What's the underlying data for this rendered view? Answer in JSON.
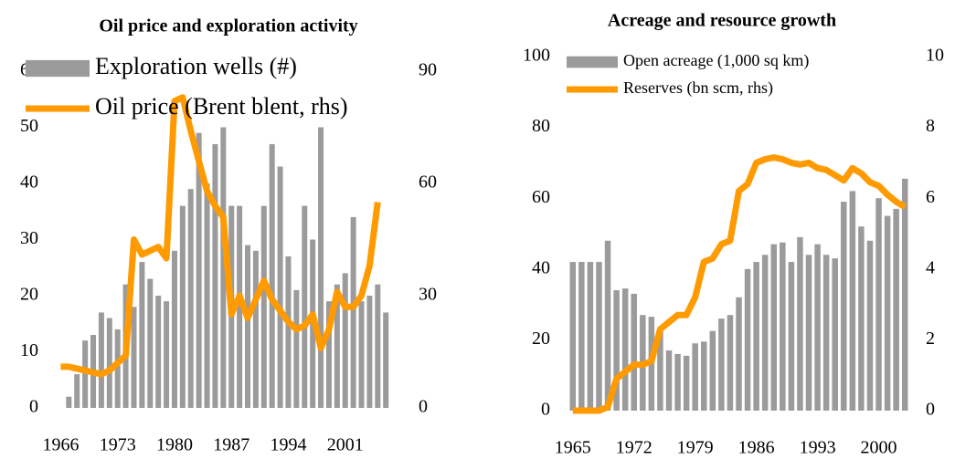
{
  "chart_data": [
    {
      "type": "combo",
      "title": "Oil price and exploration activity",
      "x": [
        1966,
        1967,
        1968,
        1969,
        1970,
        1971,
        1972,
        1973,
        1974,
        1975,
        1976,
        1977,
        1978,
        1979,
        1980,
        1981,
        1982,
        1983,
        1984,
        1985,
        1986,
        1987,
        1988,
        1989,
        1990,
        1991,
        1992,
        1993,
        1994,
        1995,
        1996,
        1997,
        1998,
        1999,
        2000,
        2001,
        2002,
        2003,
        2004,
        2005,
        2006
      ],
      "series": [
        {
          "name": "Exploration wells (#)",
          "type": "bar",
          "color": "#9b9b9b",
          "values": [
            null,
            2,
            6,
            12,
            13,
            17,
            16,
            14,
            22,
            18,
            26,
            23,
            20,
            19,
            28,
            36,
            39,
            49,
            40,
            47,
            50,
            36,
            36,
            29,
            28,
            36,
            47,
            43,
            27,
            21,
            36,
            30,
            50,
            19,
            22,
            24,
            34,
            19,
            20,
            22,
            17
          ]
        },
        {
          "name": "Oil price (Brent blent, rhs)",
          "type": "line",
          "color": "#ff9a00",
          "axis": "y2",
          "values": [
            11,
            11,
            10.5,
            10,
            9.5,
            9,
            10,
            12,
            14,
            45,
            41,
            42,
            43,
            40,
            82,
            83,
            74,
            66,
            58,
            54,
            51,
            25,
            30,
            24,
            29,
            34,
            29,
            26,
            23,
            21,
            22,
            25,
            16,
            21,
            31,
            27,
            27,
            30,
            38,
            55,
            null
          ]
        }
      ],
      "xlim": [
        1965.5,
        2008
      ],
      "xticks": [
        1966,
        1973,
        1980,
        1987,
        1994,
        2001
      ],
      "ylim": [
        0,
        60
      ],
      "yticks": [
        0,
        10,
        20,
        30,
        40,
        50,
        60
      ],
      "y2lim": [
        0,
        90
      ],
      "y2ticks": [
        0,
        30,
        60,
        90
      ],
      "legend": "top-left"
    },
    {
      "type": "combo",
      "title": "Acreage and resource growth",
      "x": [
        1965,
        1966,
        1967,
        1968,
        1969,
        1970,
        1971,
        1972,
        1973,
        1974,
        1975,
        1976,
        1977,
        1978,
        1979,
        1980,
        1981,
        1982,
        1983,
        1984,
        1985,
        1986,
        1987,
        1988,
        1989,
        1990,
        1991,
        1992,
        1993,
        1994,
        1995,
        1996,
        1997,
        1998,
        1999,
        2000,
        2001,
        2002,
        2003
      ],
      "series": [
        {
          "name": "Open acreage (1,000 sq km)",
          "type": "bar",
          "color": "#9b9b9b",
          "values": [
            42,
            42,
            42,
            42,
            48,
            34,
            34.5,
            33,
            27,
            26.5,
            23,
            17,
            16,
            15.5,
            19,
            19.5,
            22.5,
            26,
            27,
            32,
            40,
            42,
            44,
            47,
            47.5,
            42,
            49,
            44,
            47,
            44,
            43,
            59,
            62,
            52,
            48,
            60,
            55,
            57,
            65.5
          ]
        },
        {
          "name": "Reserves (bn scm, rhs)",
          "type": "line",
          "color": "#ff9a00",
          "axis": "y2",
          "values": [
            0,
            0,
            0,
            0,
            0.1,
            0.9,
            1.1,
            1.3,
            1.3,
            1.4,
            2.3,
            2.5,
            2.7,
            2.7,
            3.2,
            4.2,
            4.3,
            4.7,
            4.8,
            6.2,
            6.4,
            7.0,
            7.1,
            7.15,
            7.1,
            7.0,
            6.95,
            7.0,
            6.85,
            6.8,
            6.65,
            6.5,
            6.85,
            6.7,
            6.45,
            6.35,
            6.1,
            5.9,
            5.75
          ]
        }
      ],
      "xlim": [
        1964.5,
        2003.5
      ],
      "xticks": [
        1965,
        1972,
        1979,
        1986,
        1993,
        2000
      ],
      "ylim": [
        0,
        100
      ],
      "yticks": [
        0,
        20,
        40,
        60,
        80,
        100
      ],
      "y2lim": [
        0,
        10
      ],
      "y2ticks": [
        0,
        2,
        4,
        6,
        8,
        10
      ],
      "legend": "top-left"
    }
  ]
}
